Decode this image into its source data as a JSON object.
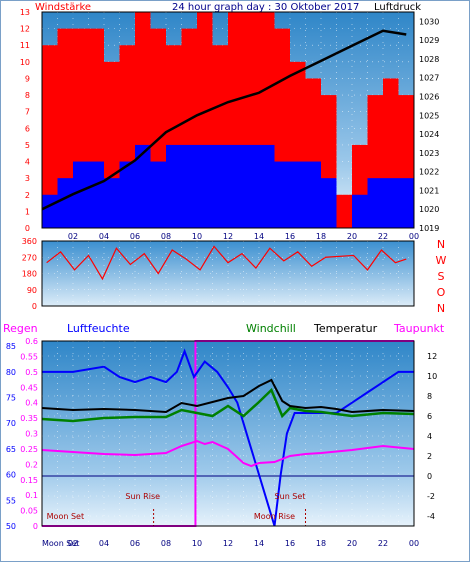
{
  "header": {
    "left_label": "Windstärke",
    "title": "24 hour graph day : 30 Oktober 2017",
    "right_label": "Luftdruck"
  },
  "colors": {
    "wind_gust": "#ff0000",
    "wind_avg": "#0000ff",
    "pressure": "#000000",
    "humidity": "#0000ff",
    "windchill": "#008000",
    "temperature": "#000000",
    "dewpoint": "#ff00ff",
    "rain": "#ff00ff",
    "left_axis_red": "#ff0000",
    "left_axis_blue": "#0000ff"
  },
  "chart_data": [
    {
      "type": "bar",
      "name": "wind-pressure",
      "x_ticks": [
        "02",
        "04",
        "06",
        "08",
        "10",
        "12",
        "14",
        "16",
        "18",
        "20",
        "22",
        "00"
      ],
      "y_left_ticks": [
        "0",
        "1",
        "2",
        "3",
        "4",
        "5",
        "6",
        "7",
        "8",
        "9",
        "10",
        "11",
        "12",
        "13"
      ],
      "y_right_ticks": [
        "1019",
        "1020",
        "1021",
        "1022",
        "1023",
        "1024",
        "1025",
        "1026",
        "1027",
        "1028",
        "1029",
        "1030"
      ],
      "ylim_left": [
        0,
        13
      ],
      "ylim_right": [
        1019,
        1030.5
      ],
      "series": [
        {
          "name": "Windstärke",
          "kind": "gust",
          "x": [
            0.5,
            1.5,
            2.5,
            3.5,
            4.5,
            5.5,
            6.5,
            7.5,
            8.5,
            9.5,
            10.5,
            11.5,
            12.5,
            13.5,
            14.5,
            15.5,
            16.5,
            17.5,
            18.5,
            19.5,
            20.5,
            21.5,
            22.5,
            23.5
          ],
          "values": [
            11,
            12,
            12,
            12,
            10,
            11,
            13,
            12,
            11,
            12,
            13,
            11,
            13,
            13,
            13,
            12,
            10,
            9,
            8,
            2,
            5,
            8,
            9,
            8
          ]
        },
        {
          "kind": "average",
          "x": [
            0.5,
            1.5,
            2.5,
            3.5,
            4.5,
            5.5,
            6.5,
            7.5,
            8.5,
            9.5,
            10.5,
            11.5,
            12.5,
            13.5,
            14.5,
            15.5,
            16.5,
            17.5,
            18.5,
            19.5,
            20.5,
            21.5,
            22.5,
            23.5
          ],
          "values": [
            2,
            3,
            4,
            4,
            3,
            4,
            5,
            4,
            5,
            5,
            5,
            5,
            5,
            5,
            5,
            4,
            4,
            4,
            3,
            0,
            2,
            3,
            3,
            3
          ]
        },
        {
          "name": "Luftdruck",
          "x": [
            0,
            2,
            4,
            6,
            8,
            10,
            12,
            14,
            16,
            18,
            20,
            22,
            23.5
          ],
          "values": [
            1020,
            1020.8,
            1021.5,
            1022.6,
            1024.1,
            1025.0,
            1025.7,
            1026.2,
            1027.1,
            1027.9,
            1028.7,
            1029.5,
            1029.3
          ]
        }
      ]
    },
    {
      "type": "scatter",
      "name": "wind-direction",
      "y_ticks": [
        "0",
        "90",
        "180",
        "270",
        "360"
      ],
      "right_labels": [
        "N",
        "W",
        "S",
        "O",
        "N"
      ],
      "ylim": [
        0,
        360
      ],
      "series": [
        {
          "x": [
            0.3,
            1.2,
            2.1,
            3.0,
            3.9,
            4.8,
            5.7,
            6.6,
            7.5,
            8.4,
            9.3,
            10.2,
            11.1,
            12.0,
            12.9,
            13.8,
            14.7,
            15.6,
            16.5,
            17.4,
            18.3,
            20.1,
            21.0,
            21.9,
            22.8,
            23.5
          ],
          "values": [
            240,
            300,
            200,
            280,
            150,
            320,
            230,
            290,
            180,
            310,
            260,
            200,
            330,
            240,
            290,
            210,
            320,
            250,
            300,
            220,
            270,
            280,
            200,
            310,
            240,
            260
          ]
        }
      ]
    },
    {
      "type": "line",
      "name": "climate",
      "legend": [
        "Regen",
        "Luftfeuchte",
        "Windchill",
        "Temperatur",
        "Taupunkt"
      ],
      "y_left_outer_ticks": [
        "50",
        "55",
        "60",
        "65",
        "70",
        "75",
        "80",
        "85"
      ],
      "y_left_inner_ticks": [
        "0",
        "0.05",
        "0.1",
        "0.15",
        "0.2",
        "0.25",
        "0.3",
        "0.35",
        "0.4",
        "0.45",
        "0.5",
        "0.55",
        "0.6"
      ],
      "y_right_ticks": [
        "-4",
        "-2",
        "0",
        "2",
        "4",
        "6",
        "8",
        "10",
        "12"
      ],
      "ylim_temp": [
        -5,
        13.5
      ],
      "ylim_humidity": [
        50,
        86
      ],
      "annotations": [
        "Moon Set",
        "Sun Rise",
        "Sun Set",
        "Moon Rise"
      ],
      "x_ticks": [
        "02",
        "04",
        "06",
        "08",
        "10",
        "12",
        "14",
        "16",
        "18",
        "20",
        "22",
        "00"
      ],
      "bottom_left_label": "Moon Set",
      "series": [
        {
          "name": "Luftfeuchte",
          "x": [
            0,
            2,
            4,
            5,
            6,
            7,
            8,
            8.7,
            9.2,
            9.8,
            10.5,
            11.3,
            12,
            12.6,
            13,
            13.4,
            14,
            14.5,
            15,
            15.4,
            15.8,
            16.3,
            17,
            18,
            19,
            20,
            21,
            22,
            23,
            24
          ],
          "values": [
            80,
            80,
            81,
            79,
            78,
            79,
            78,
            80,
            84,
            79,
            82,
            80,
            77,
            74,
            70,
            66,
            60,
            55,
            50,
            60,
            68,
            72,
            72,
            72,
            72,
            74,
            76,
            78,
            80,
            80
          ]
        },
        {
          "name": "Windchill",
          "x": [
            0,
            2,
            4,
            6,
            8,
            9,
            10,
            11,
            12,
            13,
            14,
            14.8,
            15.5,
            16,
            17,
            18,
            19,
            20,
            22,
            24
          ],
          "values": [
            5.7,
            5.5,
            5.8,
            5.9,
            5.9,
            6.6,
            6.3,
            6.0,
            7.0,
            6.0,
            7.4,
            8.6,
            6.0,
            6.8,
            6.5,
            6.4,
            6.2,
            6.0,
            6.3,
            6.2
          ]
        },
        {
          "name": "Temperatur",
          "x": [
            0,
            2,
            4,
            6,
            8,
            9,
            10,
            11,
            12,
            13,
            14,
            14.8,
            15.5,
            16,
            17,
            18,
            19,
            20,
            22,
            24
          ],
          "values": [
            6.8,
            6.6,
            6.7,
            6.6,
            6.4,
            7.3,
            7.0,
            7.4,
            7.8,
            8.0,
            9.0,
            9.6,
            7.5,
            7.0,
            6.8,
            6.9,
            6.7,
            6.4,
            6.6,
            6.5
          ]
        },
        {
          "name": "Taupunkt",
          "x": [
            0,
            2,
            4,
            6,
            8,
            9,
            10,
            10.5,
            11,
            12,
            12.5,
            13,
            13.5,
            14,
            15,
            16,
            17,
            18,
            20,
            22,
            24
          ],
          "values": [
            2.6,
            2.4,
            2.2,
            2.1,
            2.3,
            3.0,
            3.5,
            3.2,
            3.4,
            2.7,
            2.0,
            1.3,
            1.0,
            1.3,
            1.4,
            2.0,
            2.2,
            2.3,
            2.6,
            3.0,
            2.7
          ]
        },
        {
          "name": "Regen",
          "x": [
            0,
            9.9,
            9.9,
            24
          ],
          "values": [
            0,
            0,
            0.6,
            0.6
          ]
        }
      ]
    }
  ]
}
